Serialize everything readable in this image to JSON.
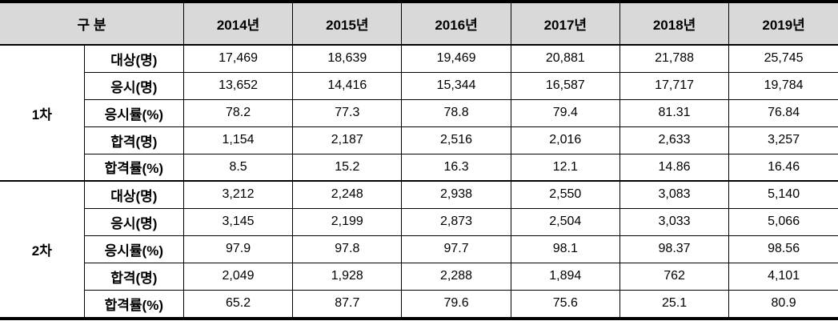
{
  "colors": {
    "header_background": "#d9d9d9",
    "border": "#000000",
    "text": "#000000",
    "body_background": "#ffffff"
  },
  "chart_data": {
    "type": "table",
    "header": {
      "category": "구 분",
      "years": [
        "2014년",
        "2015년",
        "2016년",
        "2017년",
        "2018년",
        "2019년"
      ]
    },
    "groups": [
      {
        "name": "1차",
        "rows": [
          {
            "label": "대상(명)",
            "values": [
              "17,469",
              "18,639",
              "19,469",
              "20,881",
              "21,788",
              "25,745"
            ]
          },
          {
            "label": "응시(명)",
            "values": [
              "13,652",
              "14,416",
              "15,344",
              "16,587",
              "17,717",
              "19,784"
            ]
          },
          {
            "label": "응시률(%)",
            "values": [
              "78.2",
              "77.3",
              "78.8",
              "79.4",
              "81.31",
              "76.84"
            ]
          },
          {
            "label": "합격(명)",
            "values": [
              "1,154",
              "2,187",
              "2,516",
              "2,016",
              "2,633",
              "3,257"
            ]
          },
          {
            "label": "합격률(%)",
            "values": [
              "8.5",
              "15.2",
              "16.3",
              "12.1",
              "14.86",
              "16.46"
            ]
          }
        ]
      },
      {
        "name": "2차",
        "rows": [
          {
            "label": "대상(명)",
            "values": [
              "3,212",
              "2,248",
              "2,938",
              "2,550",
              "3,083",
              "5,140"
            ]
          },
          {
            "label": "응시(명)",
            "values": [
              "3,145",
              "2,199",
              "2,873",
              "2,504",
              "3,033",
              "5,066"
            ]
          },
          {
            "label": "응시률(%)",
            "values": [
              "97.9",
              "97.8",
              "97.7",
              "98.1",
              "98.37",
              "98.56"
            ]
          },
          {
            "label": "합격(명)",
            "values": [
              "2,049",
              "1,928",
              "2,288",
              "1,894",
              "762",
              "4,101"
            ]
          },
          {
            "label": "합격률(%)",
            "values": [
              "65.2",
              "87.7",
              "79.6",
              "75.6",
              "25.1",
              "80.9"
            ]
          }
        ]
      }
    ]
  }
}
